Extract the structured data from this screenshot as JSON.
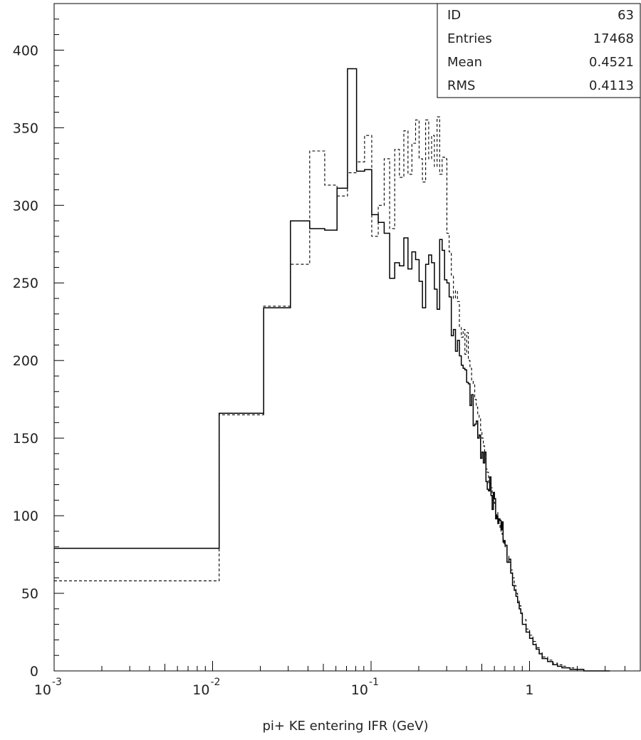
{
  "chart_data": {
    "type": "line",
    "style": "step histogram, two overlaid series (solid and dashed), log-scale x axis",
    "xlabel": "pi+ KE entering IFR (GeV)",
    "ylabel": "",
    "xscale": "log",
    "xlim": [
      0.001,
      5
    ],
    "ylim": [
      0,
      430
    ],
    "x_ticks": [
      {
        "base": "10",
        "exp": "-3",
        "value": 0.001
      },
      {
        "base": "10",
        "exp": "-2",
        "value": 0.01
      },
      {
        "base": "10",
        "exp": "-1",
        "value": 0.1
      },
      {
        "base": "1",
        "exp": "",
        "value": 1
      }
    ],
    "y_ticks": [
      "0",
      "50",
      "100",
      "150",
      "200",
      "250",
      "300",
      "350",
      "400"
    ],
    "grid": false,
    "stats_box": {
      "position": "top-right",
      "rows": [
        {
          "label": "ID",
          "value": "63"
        },
        {
          "label": "Entries",
          "value": "17468"
        },
        {
          "label": "Mean",
          "value": "0.4521"
        },
        {
          "label": "RMS",
          "value": "0.4113"
        }
      ]
    },
    "series": [
      {
        "style": "solid",
        "x": [
          0.001,
          0.011,
          0.021,
          0.031,
          0.041,
          0.051,
          0.061,
          0.071,
          0.081,
          0.091,
          0.101,
          0.111,
          0.121,
          0.131,
          0.141,
          0.151,
          0.161,
          0.171,
          0.181,
          0.191,
          0.201,
          0.211,
          0.221,
          0.231,
          0.241,
          0.251,
          0.261,
          0.271,
          0.281,
          0.291,
          0.301,
          0.311,
          0.321,
          0.331,
          0.341,
          0.351,
          0.361,
          0.371,
          0.381,
          0.391,
          0.401,
          0.411,
          0.421,
          0.431,
          0.441,
          0.451,
          0.461,
          0.471,
          0.481,
          0.491,
          0.501,
          0.511,
          0.521,
          0.531,
          0.541,
          0.551,
          0.561,
          0.571,
          0.581,
          0.591,
          0.601,
          0.611,
          0.621,
          0.631,
          0.641,
          0.651,
          0.661,
          0.671,
          0.681,
          0.691,
          0.701,
          0.721,
          0.741,
          0.761,
          0.781,
          0.801,
          0.821,
          0.841,
          0.861,
          0.881,
          0.901,
          0.951,
          1.001,
          1.051,
          1.101,
          1.151,
          1.201,
          1.301,
          1.401,
          1.501,
          1.601,
          1.701,
          1.801,
          1.901,
          2.001,
          2.101,
          2.201,
          2.401,
          2.601,
          2.801,
          3.001
        ],
        "values": [
          79,
          166,
          234,
          290,
          285,
          284,
          311,
          388,
          322,
          323,
          294,
          289,
          282,
          253,
          263,
          261,
          279,
          259,
          270,
          265,
          251,
          234,
          262,
          268,
          263,
          246,
          233,
          278,
          271,
          252,
          250,
          241,
          216,
          220,
          206,
          213,
          203,
          197,
          195,
          194,
          186,
          185,
          171,
          178,
          158,
          159,
          161,
          150,
          152,
          137,
          141,
          134,
          141,
          122,
          117,
          116,
          125,
          113,
          104,
          115,
          111,
          98,
          100,
          95,
          98,
          97,
          91,
          96,
          83,
          84,
          81,
          70,
          72,
          63,
          55,
          52,
          48,
          44,
          40,
          37,
          30,
          25,
          21,
          17,
          14,
          11,
          8,
          6,
          4,
          3,
          2,
          2,
          1,
          1,
          1,
          1,
          0,
          0,
          0,
          0,
          0
        ]
      },
      {
        "style": "dashed",
        "x": [
          0.001,
          0.011,
          0.021,
          0.031,
          0.041,
          0.051,
          0.061,
          0.071,
          0.081,
          0.091,
          0.101,
          0.111,
          0.121,
          0.131,
          0.141,
          0.151,
          0.161,
          0.171,
          0.181,
          0.191,
          0.201,
          0.211,
          0.221,
          0.231,
          0.241,
          0.251,
          0.261,
          0.271,
          0.281,
          0.291,
          0.301,
          0.311,
          0.321,
          0.331,
          0.341,
          0.351,
          0.361,
          0.371,
          0.381,
          0.391,
          0.401,
          0.411,
          0.421,
          0.431,
          0.441,
          0.451,
          0.461,
          0.471,
          0.481,
          0.491,
          0.501,
          0.511,
          0.521,
          0.531,
          0.541,
          0.551,
          0.561,
          0.571,
          0.581,
          0.591,
          0.601,
          0.611,
          0.621,
          0.631,
          0.641,
          0.651,
          0.661,
          0.671,
          0.681,
          0.691,
          0.701,
          0.721,
          0.741,
          0.761,
          0.781,
          0.801,
          0.821,
          0.841,
          0.861,
          0.881,
          0.901,
          0.951,
          1.001,
          1.051,
          1.101,
          1.151,
          1.201,
          1.301,
          1.401,
          1.501,
          1.601,
          1.701,
          1.801,
          1.901,
          2.001,
          2.101,
          2.201,
          2.401,
          2.601,
          2.801,
          3.001
        ],
        "values": [
          58,
          165,
          235,
          262,
          335,
          313,
          306,
          321,
          328,
          345,
          280,
          300,
          330,
          285,
          336,
          318,
          348,
          320,
          340,
          355,
          330,
          315,
          355,
          330,
          345,
          325,
          357,
          320,
          331,
          330,
          282,
          270,
          255,
          240,
          245,
          238,
          222,
          215,
          220,
          204,
          218,
          200,
          195,
          187,
          185,
          175,
          170,
          165,
          163,
          155,
          150,
          145,
          140,
          130,
          128,
          120,
          122,
          118,
          110,
          112,
          108,
          100,
          102,
          98,
          95,
          92,
          90,
          88,
          85,
          82,
          80,
          74,
          70,
          65,
          60,
          55,
          50,
          45,
          42,
          38,
          33,
          27,
          23,
          19,
          15,
          12,
          9,
          7,
          5,
          4,
          3,
          2,
          2,
          1,
          1,
          1,
          0,
          0,
          0,
          0,
          0
        ]
      }
    ]
  }
}
